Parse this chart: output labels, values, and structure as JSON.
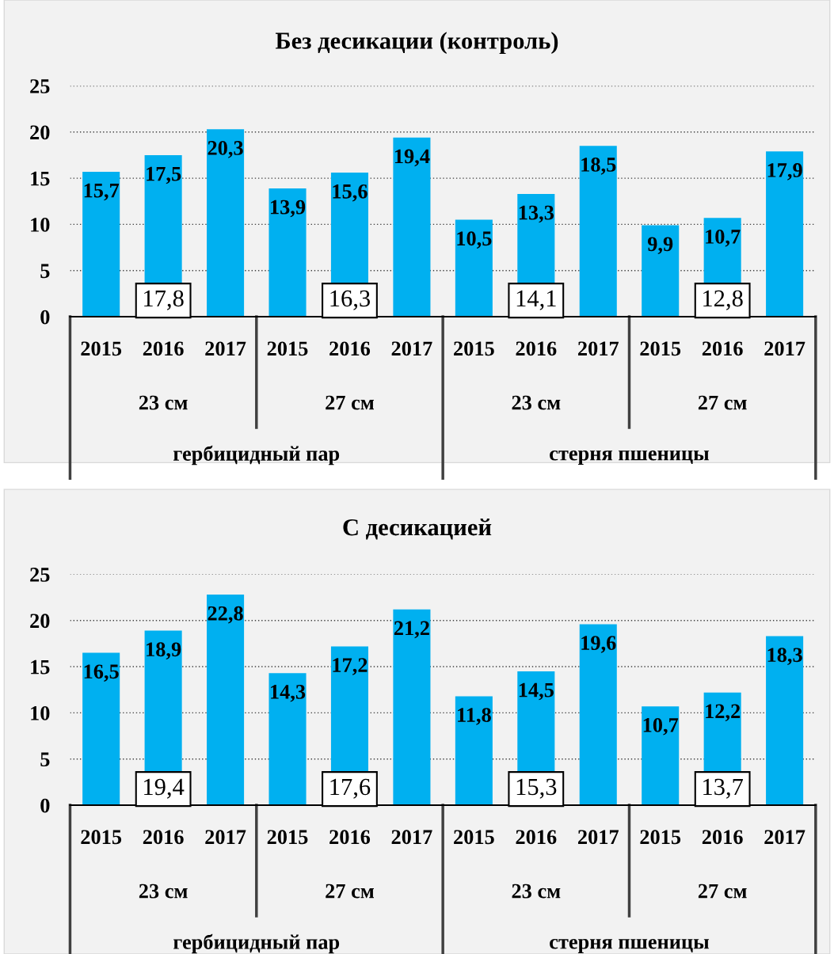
{
  "chart_data": [
    {
      "type": "bar",
      "title": "Без десикации (контроль)",
      "categories": [
        "2015",
        "2016",
        "2017",
        "2015",
        "2016",
        "2017",
        "2015",
        "2016",
        "2017",
        "2015",
        "2016",
        "2017"
      ],
      "values": [
        15.7,
        17.5,
        20.3,
        13.9,
        15.6,
        19.4,
        10.5,
        13.3,
        18.5,
        9.9,
        10.7,
        17.9
      ],
      "value_labels": [
        "15,7",
        "17,5",
        "20,3",
        "13,9",
        "15,6",
        "19,4",
        "10,5",
        "13,3",
        "18,5",
        "9,9",
        "10,7",
        "17,9"
      ],
      "color": "#00b0f0",
      "ylim": [
        0,
        25
      ],
      "yticks": [
        0,
        5,
        10,
        15,
        20,
        25
      ],
      "grid": "y",
      "legend": false,
      "annotations": [
        "23 см",
        "27 см",
        "23 см",
        "27 см",
        "гербицидный пар",
        "стерня пшеницы",
        "17,8",
        "16,3",
        "14,1",
        "12,8"
      ]
    },
    {
      "type": "bar",
      "title": "С десикацией",
      "categories": [
        "2015",
        "2016",
        "2017",
        "2015",
        "2016",
        "2017",
        "2015",
        "2016",
        "2017",
        "2015",
        "2016",
        "2017"
      ],
      "values": [
        16.5,
        18.9,
        22.8,
        14.3,
        17.2,
        21.2,
        11.8,
        14.5,
        19.6,
        10.7,
        12.2,
        18.3
      ],
      "value_labels": [
        "16,5",
        "18,9",
        "22,8",
        "14,3",
        "17,2",
        "21,2",
        "11,8",
        "14,5",
        "19,6",
        "10,7",
        "12,2",
        "18,3"
      ],
      "color": "#00b0f0",
      "ylim": [
        0,
        25
      ],
      "yticks": [
        0,
        5,
        10,
        15,
        20,
        25
      ],
      "grid": "y",
      "legend": false,
      "annotations": [
        "23 см",
        "27 см",
        "23 см",
        "27 см",
        "гербицидный пар",
        "стерня пшеницы",
        "19,4",
        "17,6",
        "15,3",
        "13,7"
      ]
    }
  ]
}
